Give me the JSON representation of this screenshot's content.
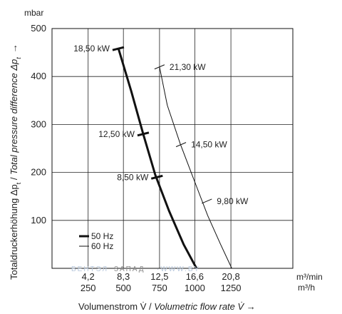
{
  "chart_data": {
    "type": "line",
    "y_unit": "mbar",
    "ylabel_main": "Totaldruckerhöhung Δp",
    "ylabel_sub": "t",
    "ylabel_sep": " / ",
    "ylabel_en": "Total pressure difference Δp",
    "ylabel_arrow": "→",
    "xlabel_main": "Volumenstrom V̇ / ",
    "xlabel_en": "Volumetric flow rate V̇",
    "xlabel_arrow": " →",
    "x_unit_primary": "m³/min",
    "x_unit_secondary": "m³/h",
    "xlim": [
      0,
      28
    ],
    "ylim": [
      0,
      500
    ],
    "y_ticks": [
      100,
      200,
      300,
      400,
      500
    ],
    "x_ticks": [
      {
        "value": 4.2,
        "label": "4,2",
        "label2": "250"
      },
      {
        "value": 8.3,
        "label": "8,3",
        "label2": "500"
      },
      {
        "value": 12.5,
        "label": "12,5",
        "label2": "750"
      },
      {
        "value": 16.6,
        "label": "16,6",
        "label2": "1000"
      },
      {
        "value": 20.8,
        "label": "20,8",
        "label2": "1250"
      }
    ],
    "grid": true,
    "legend": {
      "position": "bottom-left",
      "entries": [
        {
          "label": "50 Hz",
          "style": "thick"
        },
        {
          "label": "60 Hz",
          "style": "thin"
        }
      ]
    },
    "series": [
      {
        "name": "50 Hz",
        "style": "thick",
        "x": [
          7.7,
          9.2,
          10.6,
          12.0,
          13.6,
          15.3,
          16.8
        ],
        "y": [
          460,
          370,
          280,
          195,
          120,
          50,
          0
        ],
        "markers": [
          {
            "x": 7.7,
            "y": 458,
            "label": "18,50 kW",
            "side": "left"
          },
          {
            "x": 10.6,
            "y": 280,
            "label": "12,50 kW",
            "side": "left"
          },
          {
            "x": 12.2,
            "y": 190,
            "label": "8,50 kW",
            "side": "left"
          }
        ]
      },
      {
        "name": "60 Hz",
        "style": "thin",
        "x": [
          12.5,
          13.4,
          14.9,
          16.6,
          18.1,
          19.6,
          20.9
        ],
        "y": [
          420,
          340,
          260,
          180,
          110,
          50,
          0
        ],
        "markers": [
          {
            "x": 12.5,
            "y": 420,
            "label": "21,30 kW",
            "side": "right"
          },
          {
            "x": 15.0,
            "y": 258,
            "label": "14,50 kW",
            "side": "right"
          },
          {
            "x": 18.0,
            "y": 140,
            "label": "9,80 kW",
            "side": "right"
          }
        ]
      }
    ]
  },
  "watermark": {
    "left": "ВЕНТЭЛ",
    "mid": "ЗАПАД",
    "right": "·WWW.BY"
  }
}
